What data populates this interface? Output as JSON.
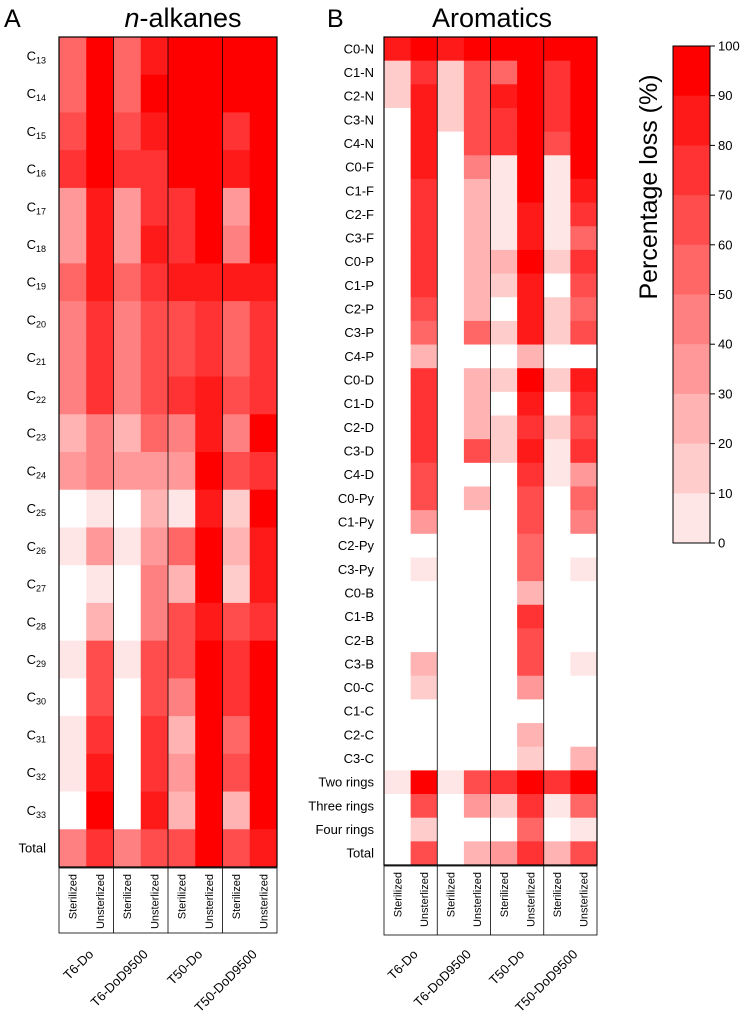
{
  "colors": {
    "scale": [
      "#ffffff",
      "#ffe6e6",
      "#ffcccc",
      "#ffb3b3",
      "#ff9999",
      "#ff8080",
      "#ff6666",
      "#ff4d4d",
      "#ff3333",
      "#ff1a1a",
      "#ff0000"
    ],
    "border": "#000000"
  },
  "chart_data": [
    {
      "type": "heatmap",
      "panel_letter": "A",
      "title_italic": "n",
      "title_rest": "-alkanes",
      "rows": [
        {
          "base": "C",
          "sub": "13"
        },
        {
          "base": "C",
          "sub": "14"
        },
        {
          "base": "C",
          "sub": "15"
        },
        {
          "base": "C",
          "sub": "16"
        },
        {
          "base": "C",
          "sub": "17"
        },
        {
          "base": "C",
          "sub": "18"
        },
        {
          "base": "C",
          "sub": "19"
        },
        {
          "base": "C",
          "sub": "20"
        },
        {
          "base": "C",
          "sub": "21"
        },
        {
          "base": "C",
          "sub": "22"
        },
        {
          "base": "C",
          "sub": "23"
        },
        {
          "base": "C",
          "sub": "24"
        },
        {
          "base": "C",
          "sub": "25"
        },
        {
          "base": "C",
          "sub": "26"
        },
        {
          "base": "C",
          "sub": "27"
        },
        {
          "base": "C",
          "sub": "28"
        },
        {
          "base": "C",
          "sub": "29"
        },
        {
          "base": "C",
          "sub": "30"
        },
        {
          "base": "C",
          "sub": "31"
        },
        {
          "base": "C",
          "sub": "32"
        },
        {
          "base": "C",
          "sub": "33"
        },
        {
          "base": "Total",
          "sub": ""
        }
      ],
      "columns": [
        "Sterilized",
        "Unsterlized",
        "Sterilized",
        "Unsterlized",
        "Sterilized",
        "Unsterlized",
        "Sterilized",
        "Unsterlized"
      ],
      "groups": [
        "T6-Do",
        "T6-DoD9500",
        "T50-Do",
        "T50-DoD9500"
      ],
      "values": [
        [
          60,
          100,
          55,
          85,
          100,
          100,
          100,
          100
        ],
        [
          60,
          100,
          60,
          95,
          100,
          100,
          100,
          100
        ],
        [
          70,
          100,
          65,
          90,
          100,
          100,
          75,
          100
        ],
        [
          80,
          100,
          80,
          80,
          100,
          100,
          90,
          100
        ],
        [
          40,
          90,
          35,
          75,
          80,
          100,
          35,
          100
        ],
        [
          40,
          90,
          40,
          90,
          80,
          100,
          45,
          100
        ],
        [
          60,
          90,
          60,
          80,
          90,
          90,
          85,
          90
        ],
        [
          50,
          80,
          50,
          70,
          70,
          80,
          60,
          80
        ],
        [
          50,
          80,
          50,
          70,
          70,
          80,
          60,
          80
        ],
        [
          50,
          80,
          50,
          70,
          80,
          85,
          70,
          80
        ],
        [
          30,
          50,
          25,
          60,
          50,
          90,
          45,
          100
        ],
        [
          40,
          50,
          40,
          40,
          40,
          100,
          70,
          80
        ],
        [
          0,
          10,
          0,
          30,
          10,
          90,
          20,
          100
        ],
        [
          10,
          40,
          10,
          40,
          60,
          100,
          30,
          90
        ],
        [
          0,
          10,
          0,
          50,
          30,
          100,
          20,
          90
        ],
        [
          0,
          30,
          0,
          50,
          70,
          85,
          70,
          80
        ],
        [
          10,
          70,
          10,
          70,
          70,
          100,
          80,
          100
        ],
        [
          0,
          70,
          0,
          70,
          50,
          100,
          80,
          100
        ],
        [
          10,
          80,
          0,
          80,
          30,
          100,
          60,
          100
        ],
        [
          10,
          90,
          0,
          80,
          40,
          100,
          70,
          100
        ],
        [
          0,
          100,
          0,
          90,
          30,
          100,
          30,
          100
        ],
        [
          50,
          80,
          50,
          70,
          70,
          100,
          70,
          90
        ]
      ]
    },
    {
      "type": "heatmap",
      "panel_letter": "B",
      "title_italic": "",
      "title_rest": "Aromatics",
      "rows": [
        {
          "base": "C0-N",
          "sub": ""
        },
        {
          "base": "C1-N",
          "sub": ""
        },
        {
          "base": "C2-N",
          "sub": ""
        },
        {
          "base": "C3-N",
          "sub": ""
        },
        {
          "base": "C4-N",
          "sub": ""
        },
        {
          "base": "C0-F",
          "sub": ""
        },
        {
          "base": "C1-F",
          "sub": ""
        },
        {
          "base": "C2-F",
          "sub": ""
        },
        {
          "base": "C3-F",
          "sub": ""
        },
        {
          "base": "C0-P",
          "sub": ""
        },
        {
          "base": "C1-P",
          "sub": ""
        },
        {
          "base": "C2-P",
          "sub": ""
        },
        {
          "base": "C3-P",
          "sub": ""
        },
        {
          "base": "C4-P",
          "sub": ""
        },
        {
          "base": "C0-D",
          "sub": ""
        },
        {
          "base": "C1-D",
          "sub": ""
        },
        {
          "base": "C2-D",
          "sub": ""
        },
        {
          "base": "C3-D",
          "sub": ""
        },
        {
          "base": "C4-D",
          "sub": ""
        },
        {
          "base": "C0-Py",
          "sub": ""
        },
        {
          "base": "C1-Py",
          "sub": ""
        },
        {
          "base": "C2-Py",
          "sub": ""
        },
        {
          "base": "C3-Py",
          "sub": ""
        },
        {
          "base": "C0-B",
          "sub": ""
        },
        {
          "base": "C1-B",
          "sub": ""
        },
        {
          "base": "C2-B",
          "sub": ""
        },
        {
          "base": "C3-B",
          "sub": ""
        },
        {
          "base": "C0-C",
          "sub": ""
        },
        {
          "base": "C1-C",
          "sub": ""
        },
        {
          "base": "C2-C",
          "sub": ""
        },
        {
          "base": "C3-C",
          "sub": ""
        },
        {
          "base": "Two rings",
          "sub": ""
        },
        {
          "base": "Three rings",
          "sub": ""
        },
        {
          "base": "Four rings",
          "sub": ""
        },
        {
          "base": "Total",
          "sub": ""
        }
      ],
      "columns": [
        "Sterilized",
        "Unsterlized",
        "Sterilized",
        "Unsterlized",
        "Sterilized",
        "Unsterlized",
        "Sterilized",
        "Unsterlized"
      ],
      "groups": [
        "T6-Do",
        "T6-DoD9500",
        "T50-Do",
        "T50-DoD9500"
      ],
      "values": [
        [
          90,
          100,
          90,
          100,
          100,
          100,
          100,
          100
        ],
        [
          20,
          80,
          20,
          70,
          60,
          100,
          80,
          100
        ],
        [
          20,
          90,
          20,
          70,
          90,
          100,
          80,
          100
        ],
        [
          0,
          90,
          20,
          70,
          80,
          100,
          80,
          100
        ],
        [
          0,
          90,
          0,
          70,
          80,
          100,
          70,
          100
        ],
        [
          0,
          90,
          0,
          50,
          10,
          100,
          10,
          100
        ],
        [
          0,
          80,
          0,
          30,
          10,
          100,
          10,
          90
        ],
        [
          0,
          80,
          0,
          30,
          10,
          90,
          10,
          80
        ],
        [
          0,
          80,
          0,
          30,
          10,
          90,
          10,
          60
        ],
        [
          0,
          80,
          0,
          30,
          30,
          100,
          20,
          80
        ],
        [
          0,
          80,
          0,
          30,
          20,
          90,
          0,
          70
        ],
        [
          0,
          70,
          0,
          30,
          0,
          90,
          20,
          60
        ],
        [
          0,
          60,
          0,
          60,
          20,
          90,
          20,
          70
        ],
        [
          0,
          30,
          0,
          0,
          0,
          30,
          0,
          0
        ],
        [
          0,
          80,
          0,
          30,
          20,
          100,
          20,
          90
        ],
        [
          0,
          80,
          0,
          30,
          0,
          90,
          0,
          80
        ],
        [
          0,
          80,
          0,
          30,
          20,
          80,
          20,
          70
        ],
        [
          0,
          80,
          0,
          70,
          20,
          90,
          10,
          80
        ],
        [
          0,
          70,
          0,
          0,
          0,
          80,
          10,
          40
        ],
        [
          0,
          70,
          0,
          30,
          0,
          70,
          0,
          60
        ],
        [
          0,
          40,
          0,
          0,
          0,
          70,
          0,
          50
        ],
        [
          0,
          0,
          0,
          0,
          0,
          60,
          0,
          0
        ],
        [
          0,
          10,
          0,
          0,
          0,
          60,
          0,
          10
        ],
        [
          0,
          0,
          0,
          0,
          0,
          30,
          0,
          0
        ],
        [
          0,
          0,
          0,
          0,
          0,
          80,
          0,
          0
        ],
        [
          0,
          0,
          0,
          0,
          0,
          70,
          0,
          0
        ],
        [
          0,
          30,
          0,
          0,
          0,
          70,
          0,
          10
        ],
        [
          0,
          20,
          0,
          0,
          0,
          40,
          0,
          0
        ],
        [
          0,
          0,
          0,
          0,
          0,
          0,
          0,
          0
        ],
        [
          0,
          0,
          0,
          0,
          0,
          30,
          0,
          0
        ],
        [
          0,
          0,
          0,
          0,
          0,
          20,
          0,
          30
        ],
        [
          10,
          100,
          10,
          70,
          80,
          100,
          80,
          100
        ],
        [
          0,
          70,
          0,
          40,
          20,
          80,
          10,
          60
        ],
        [
          0,
          20,
          0,
          0,
          0,
          60,
          0,
          10
        ],
        [
          0,
          70,
          0,
          30,
          40,
          80,
          30,
          70
        ]
      ]
    }
  ],
  "legend": {
    "label": "Percentage loss (%)",
    "ticks": [
      0,
      10,
      20,
      30,
      40,
      50,
      60,
      70,
      80,
      90,
      100
    ]
  }
}
